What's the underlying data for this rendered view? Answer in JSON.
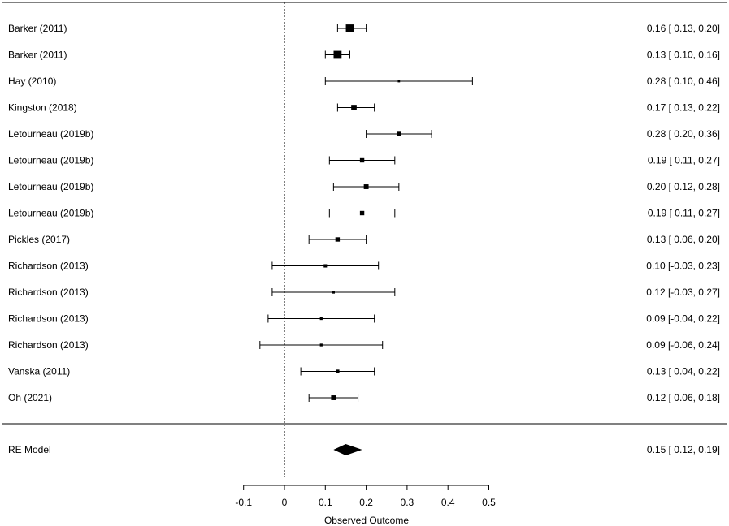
{
  "chart_data": {
    "type": "forest",
    "xlabel": "Observed Outcome",
    "xlim": [
      -0.1,
      0.5
    ],
    "ticks": [
      "-0.1",
      "0",
      "0.1",
      "0.2",
      "0.3",
      "0.4",
      "0.5"
    ],
    "tick_values": [
      -0.1,
      0,
      0.1,
      0.2,
      0.3,
      0.4,
      0.5
    ],
    "reference_line": 0,
    "studies": [
      {
        "label": "Barker (2011)",
        "est": 0.16,
        "lo": 0.13,
        "hi": 0.2,
        "weight": 3.0,
        "text": "0.16 [ 0.13, 0.20]"
      },
      {
        "label": "Barker (2011)",
        "est": 0.13,
        "lo": 0.1,
        "hi": 0.16,
        "weight": 3.0,
        "text": "0.13 [ 0.10, 0.16]"
      },
      {
        "label": "Hay (2010)",
        "est": 0.28,
        "lo": 0.1,
        "hi": 0.46,
        "weight": 0.3,
        "text": "0.28 [ 0.10, 0.46]"
      },
      {
        "label": "Kingston (2018)",
        "est": 0.17,
        "lo": 0.13,
        "hi": 0.22,
        "weight": 1.8,
        "text": "0.17 [ 0.13, 0.22]"
      },
      {
        "label": "Letourneau (2019b)",
        "est": 0.28,
        "lo": 0.2,
        "hi": 0.36,
        "weight": 1.3,
        "text": "0.28 [ 0.20, 0.36]"
      },
      {
        "label": "Letourneau (2019b)",
        "est": 0.19,
        "lo": 0.11,
        "hi": 0.27,
        "weight": 1.3,
        "text": "0.19 [ 0.11, 0.27]"
      },
      {
        "label": "Letourneau (2019b)",
        "est": 0.2,
        "lo": 0.12,
        "hi": 0.28,
        "weight": 1.5,
        "text": "0.20 [ 0.12, 0.28]"
      },
      {
        "label": "Letourneau (2019b)",
        "est": 0.19,
        "lo": 0.11,
        "hi": 0.27,
        "weight": 1.3,
        "text": "0.19 [ 0.11, 0.27]"
      },
      {
        "label": "Pickles (2017)",
        "est": 0.13,
        "lo": 0.06,
        "hi": 0.2,
        "weight": 1.3,
        "text": "0.13 [ 0.06, 0.20]"
      },
      {
        "label": "Richardson (2013)",
        "est": 0.1,
        "lo": -0.03,
        "hi": 0.23,
        "weight": 0.8,
        "text": "0.10 [-0.03, 0.23]"
      },
      {
        "label": "Richardson (2013)",
        "est": 0.12,
        "lo": -0.03,
        "hi": 0.27,
        "weight": 0.5,
        "text": "0.12 [-0.03, 0.27]"
      },
      {
        "label": "Richardson (2013)",
        "est": 0.09,
        "lo": -0.04,
        "hi": 0.22,
        "weight": 0.5,
        "text": "0.09 [-0.04, 0.22]"
      },
      {
        "label": "Richardson (2013)",
        "est": 0.09,
        "lo": -0.06,
        "hi": 0.24,
        "weight": 0.5,
        "text": "0.09 [-0.06, 0.24]"
      },
      {
        "label": "Vanska (2011)",
        "est": 0.13,
        "lo": 0.04,
        "hi": 0.22,
        "weight": 0.9,
        "text": "0.13 [ 0.04, 0.22]"
      },
      {
        "label": "Oh (2021)",
        "est": 0.12,
        "lo": 0.06,
        "hi": 0.18,
        "weight": 1.5,
        "text": "0.12 [ 0.06, 0.18]"
      }
    ],
    "summary": {
      "label": "RE Model",
      "est": 0.15,
      "lo": 0.12,
      "hi": 0.19,
      "text": "0.15 [ 0.12, 0.19]"
    }
  }
}
